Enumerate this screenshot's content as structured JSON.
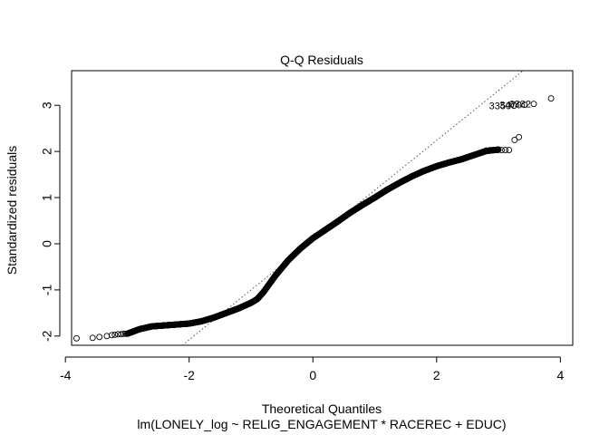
{
  "chart_data": {
    "type": "scatter",
    "title": "Q-Q Residuals",
    "xlabel": "Theoretical Quantiles",
    "subtitle": "lm(LONELY_log ~ RELIG_ENGAGEMENT * RACEREC + EDUC)",
    "ylabel": "Standardized residuals",
    "xlim": [
      -3.9,
      4.2
    ],
    "ylim": [
      -2.2,
      3.75
    ],
    "x_ticks": [
      -4,
      -2,
      0,
      2,
      4
    ],
    "x_tick_labels": [
      "-4",
      "-2",
      "0",
      "2",
      "4"
    ],
    "y_ticks": [
      -2,
      -1,
      0,
      1,
      2,
      3
    ],
    "y_tick_labels": [
      "-2",
      "-1",
      "0",
      "1",
      "2",
      "3"
    ],
    "grid": false,
    "point_style": "open-circle",
    "reference_line": {
      "style": "dotted",
      "color": "#555555",
      "slope": 1.08,
      "intercept": 0.08
    },
    "curve_knots": {
      "x": [
        -3.0,
        -2.8,
        -2.6,
        -2.4,
        -2.2,
        -2.0,
        -1.8,
        -1.6,
        -1.4,
        -1.2,
        -1.0,
        -0.9,
        -0.8,
        -0.6,
        -0.4,
        -0.2,
        0.0,
        0.2,
        0.4,
        0.6,
        0.8,
        1.0,
        1.2,
        1.4,
        1.6,
        1.8,
        2.0,
        2.2,
        2.4,
        2.6,
        2.8,
        3.0
      ],
      "y": [
        -1.95,
        -1.85,
        -1.79,
        -1.77,
        -1.75,
        -1.73,
        -1.68,
        -1.6,
        -1.5,
        -1.4,
        -1.28,
        -1.2,
        -1.05,
        -0.68,
        -0.36,
        -0.1,
        0.12,
        0.3,
        0.48,
        0.67,
        0.84,
        1.0,
        1.17,
        1.32,
        1.46,
        1.58,
        1.68,
        1.76,
        1.83,
        1.92,
        2.01,
        2.04
      ]
    },
    "sample_count": 1700,
    "tail_points": {
      "x": [
        -3.82,
        -3.56,
        -3.45,
        -3.33,
        -3.25,
        -3.2,
        -3.15,
        -3.1,
        -3.06,
        -3.03
      ],
      "y": [
        -2.05,
        -2.04,
        -2.02,
        -2.0,
        -1.98,
        -1.97,
        -1.96,
        -1.96,
        -1.95,
        -1.95
      ],
      "upper_x": [
        2.8,
        2.87,
        2.93,
        2.99,
        3.05,
        3.11,
        3.17,
        3.26,
        3.33
      ],
      "upper_y": [
        2.02,
        2.03,
        2.03,
        2.03,
        2.03,
        2.03,
        2.03,
        2.25,
        2.31
      ]
    },
    "outliers": [
      {
        "label": "3350",
        "x": 3.25,
        "y": 2.99
      },
      {
        "label": "3470",
        "x": 3.42,
        "y": 3.01
      },
      {
        "label": "6332",
        "x": 3.57,
        "y": 3.03
      },
      {
        "label": "",
        "x": 3.85,
        "y": 3.15
      }
    ]
  }
}
